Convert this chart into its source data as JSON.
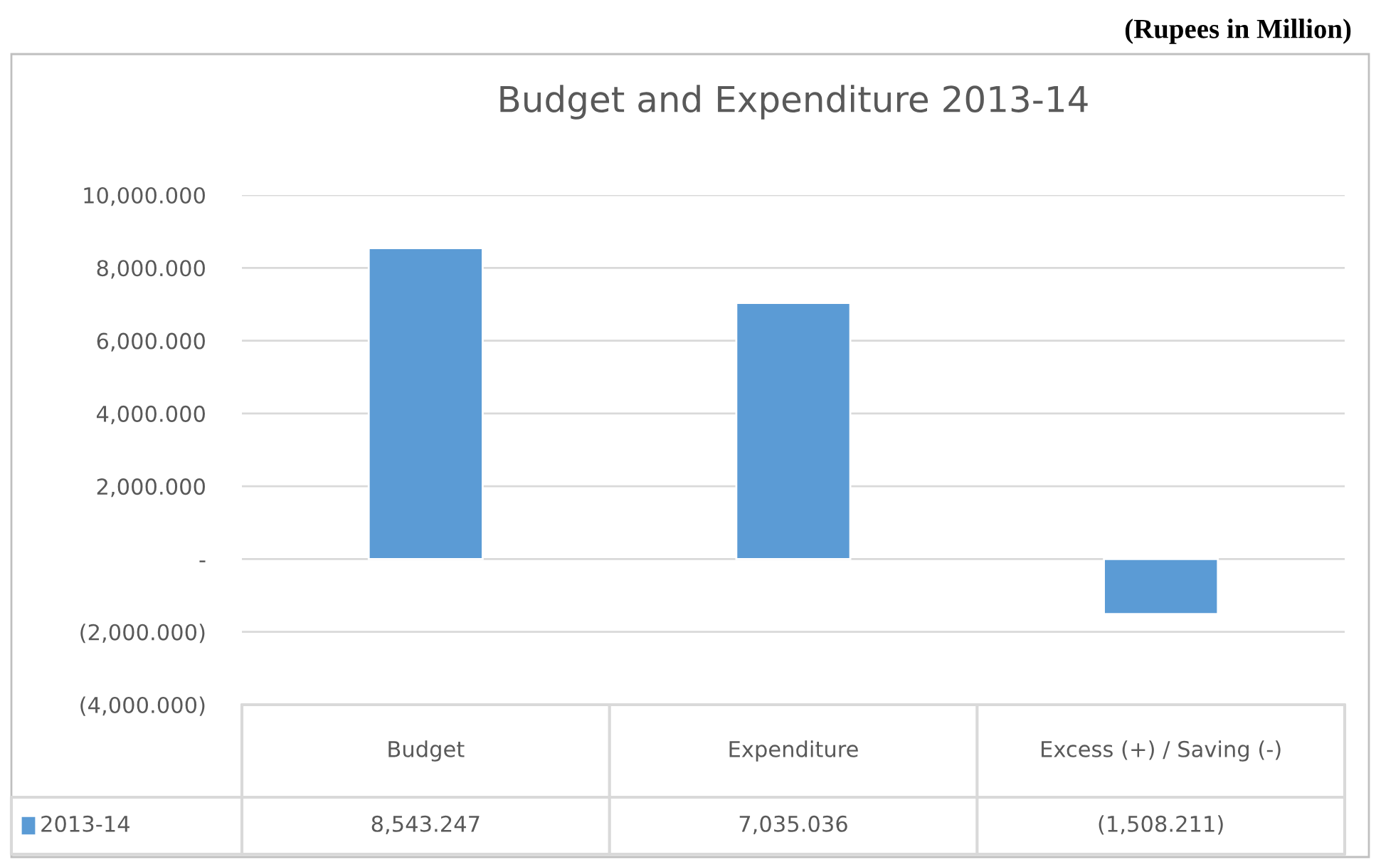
{
  "chart_data": {
    "type": "bar",
    "title": "Budget and Expenditure 2013-14",
    "annotations": [
      "(Rupees in Million)"
    ],
    "categories": [
      "Budget",
      "Expenditure",
      "Excess (+) / Saving (-)"
    ],
    "series": [
      {
        "name": "2013-14",
        "color": "#5b9bd5",
        "values": [
          8543.247,
          7035.036,
          -1508.211
        ],
        "value_labels": [
          "8,543.247",
          "7,035.036",
          "(1,508.211)"
        ]
      }
    ],
    "ylim": [
      -4000,
      10000
    ],
    "yticks": [
      {
        "value": -4000,
        "label": "(4,000.000)"
      },
      {
        "value": -2000,
        "label": "(2,000.000)"
      },
      {
        "value": 0,
        "label": "-"
      },
      {
        "value": 2000,
        "label": "2,000.000"
      },
      {
        "value": 4000,
        "label": "4,000.000"
      },
      {
        "value": 6000,
        "label": "6,000.000"
      },
      {
        "value": 8000,
        "label": "8,000.000"
      },
      {
        "value": 10000,
        "label": "10,000.000"
      }
    ],
    "grid": "y",
    "legend": "bottom left"
  }
}
